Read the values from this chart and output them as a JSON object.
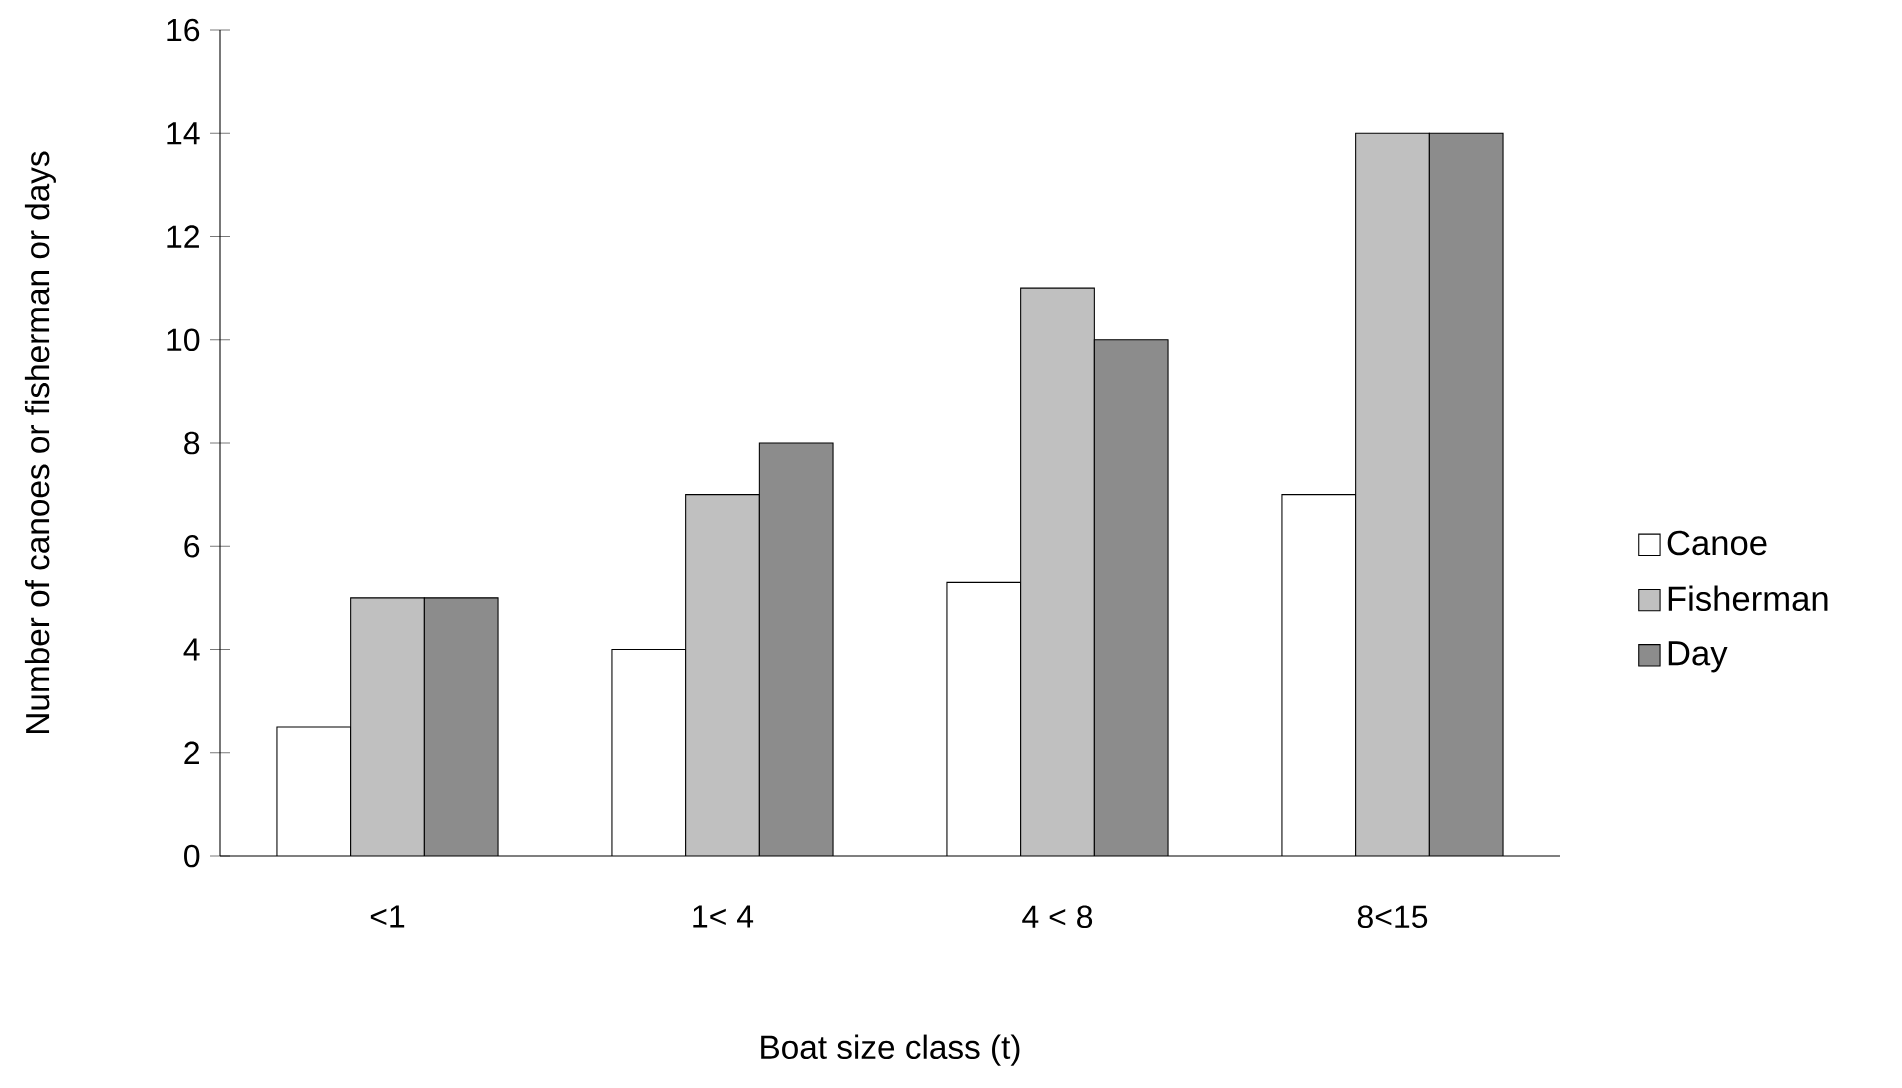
{
  "chart_data": {
    "type": "bar",
    "xlabel": "Boat size class (t)",
    "ylabel": "Number of canoes or fisherman or days",
    "categories": [
      "<1",
      "1< 4",
      "4 < 8",
      "8<15"
    ],
    "series": [
      {
        "name": "Canoe",
        "color": "#ffffff",
        "values": [
          2.5,
          4,
          5.3,
          7
        ]
      },
      {
        "name": "Fisherman",
        "color": "#c0c0c0",
        "values": [
          5,
          7,
          11,
          14
        ]
      },
      {
        "name": "Day",
        "color": "#8c8c8c",
        "values": [
          5,
          8,
          10,
          14
        ]
      }
    ],
    "ylim": [
      0,
      16
    ],
    "yticks": [
      0,
      2,
      4,
      6,
      8,
      10,
      12,
      14,
      16
    ],
    "grid": false,
    "legend": "right"
  }
}
